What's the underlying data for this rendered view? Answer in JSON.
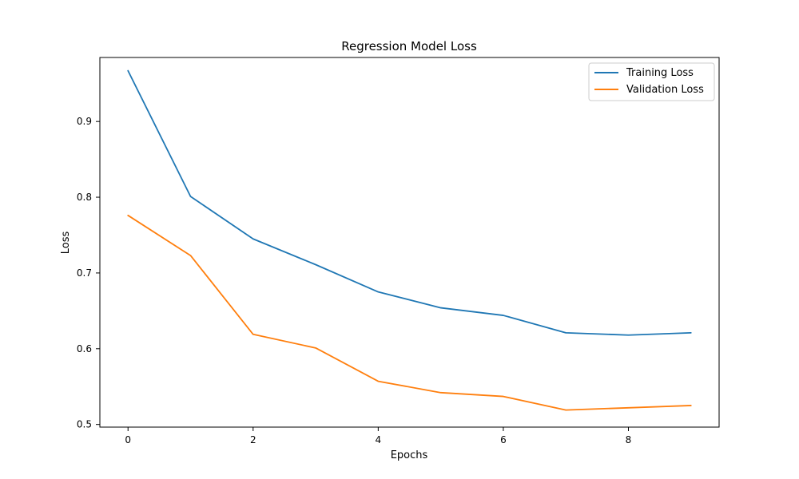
{
  "chart_data": {
    "type": "line",
    "title": "Regression Model Loss",
    "xlabel": "Epochs",
    "ylabel": "Loss",
    "x": [
      0,
      1,
      2,
      3,
      4,
      5,
      6,
      7,
      8,
      9
    ],
    "series": [
      {
        "name": "Training Loss",
        "color": "#1f77b4",
        "values": [
          0.967,
          0.801,
          0.745,
          0.711,
          0.675,
          0.654,
          0.644,
          0.621,
          0.618,
          0.621
        ]
      },
      {
        "name": "Validation Loss",
        "color": "#ff7f0e",
        "values": [
          0.776,
          0.723,
          0.619,
          0.601,
          0.557,
          0.542,
          0.537,
          0.519,
          0.522,
          0.525
        ]
      }
    ],
    "xlim": [
      -0.45,
      9.45
    ],
    "ylim": [
      0.4965,
      0.9845
    ],
    "x_ticks": [
      0,
      2,
      4,
      6,
      8
    ],
    "x_tick_labels": [
      "0",
      "2",
      "4",
      "6",
      "8"
    ],
    "y_ticks": [
      0.5,
      0.6,
      0.7,
      0.8,
      0.9
    ],
    "y_tick_labels": [
      "0.5",
      "0.6",
      "0.7",
      "0.8",
      "0.9"
    ],
    "grid": false,
    "legend_position": "top-right"
  }
}
